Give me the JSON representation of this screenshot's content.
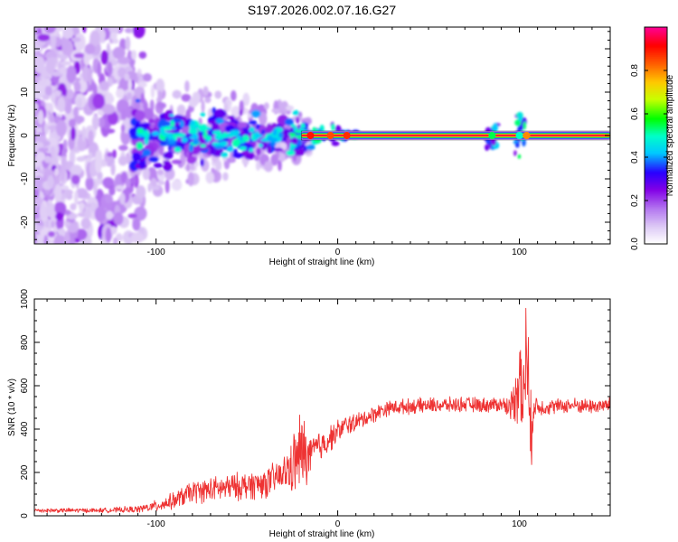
{
  "figure": {
    "title": "S197.2026.002.07.16.G27"
  },
  "chart_data": [
    {
      "type": "heatmap",
      "name": "spectrogram",
      "xlabel": "Height of straight line (km)",
      "ylabel": "Frequency (Hz)",
      "xlim": [
        -167,
        150
      ],
      "ylim": [
        -25,
        25
      ],
      "xticks": [
        -100,
        0,
        100
      ],
      "yticks": [
        -20,
        -10,
        0,
        10,
        20
      ],
      "colorbar": {
        "label": "Normalized spectral amplitude",
        "range": [
          0,
          1
        ],
        "ticks": [
          "0.0",
          "0.2",
          "0.4",
          "0.6",
          "0.8"
        ]
      },
      "features": [
        {
          "region": "x < -120 km",
          "description": "scattered low-amplitude noise across full frequency range",
          "amplitude": [
            0.05,
            0.2
          ]
        },
        {
          "region": "-110 to -20 km",
          "description": "blobs clustered near 0 Hz, frequency spread up to about ±10 Hz",
          "amplitude": [
            0.1,
            0.55
          ]
        },
        {
          "region": "-20 to 150 km",
          "description": "narrow ridge at 0 Hz",
          "amplitude": [
            0.8,
            1.0
          ]
        },
        {
          "region": "85 and 100 km",
          "description": "small disturbances of the ridge",
          "amplitude": [
            0.3,
            0.6
          ]
        }
      ]
    },
    {
      "type": "line",
      "name": "snr",
      "xlabel": "Height of straight line (km)",
      "ylabel": "SNR (10 * v/v)",
      "xlim": [
        -167,
        150
      ],
      "ylim": [
        0,
        1000
      ],
      "xticks": [
        -100,
        0,
        100
      ],
      "yticks": [
        0,
        200,
        400,
        600,
        800,
        1000
      ],
      "color": "#ee3333",
      "series": [
        {
          "name": "SNR",
          "x": [
            -167,
            -150,
            -130,
            -110,
            -100,
            -90,
            -80,
            -70,
            -60,
            -50,
            -40,
            -30,
            -25,
            -20,
            -16,
            -12,
            -8,
            -4,
            0,
            5,
            10,
            15,
            20,
            25,
            30,
            40,
            50,
            60,
            70,
            80,
            90,
            95,
            98,
            100,
            102,
            104,
            106,
            108,
            110,
            120,
            130,
            140,
            150
          ],
          "values": [
            25,
            25,
            25,
            30,
            45,
            70,
            110,
            120,
            130,
            140,
            150,
            190,
            230,
            290,
            270,
            310,
            330,
            360,
            390,
            420,
            430,
            450,
            470,
            490,
            500,
            505,
            510,
            510,
            515,
            510,
            515,
            500,
            560,
            700,
            480,
            850,
            340,
            520,
            500,
            505,
            510,
            505,
            510
          ],
          "amplitude": [
            12,
            12,
            12,
            18,
            30,
            45,
            60,
            65,
            70,
            75,
            80,
            90,
            150,
            250,
            120,
            90,
            80,
            70,
            60,
            55,
            50,
            45,
            45,
            40,
            40,
            40,
            40,
            40,
            40,
            40,
            40,
            60,
            150,
            300,
            200,
            400,
            250,
            80,
            45,
            40,
            40,
            40,
            40
          ]
        }
      ]
    }
  ]
}
